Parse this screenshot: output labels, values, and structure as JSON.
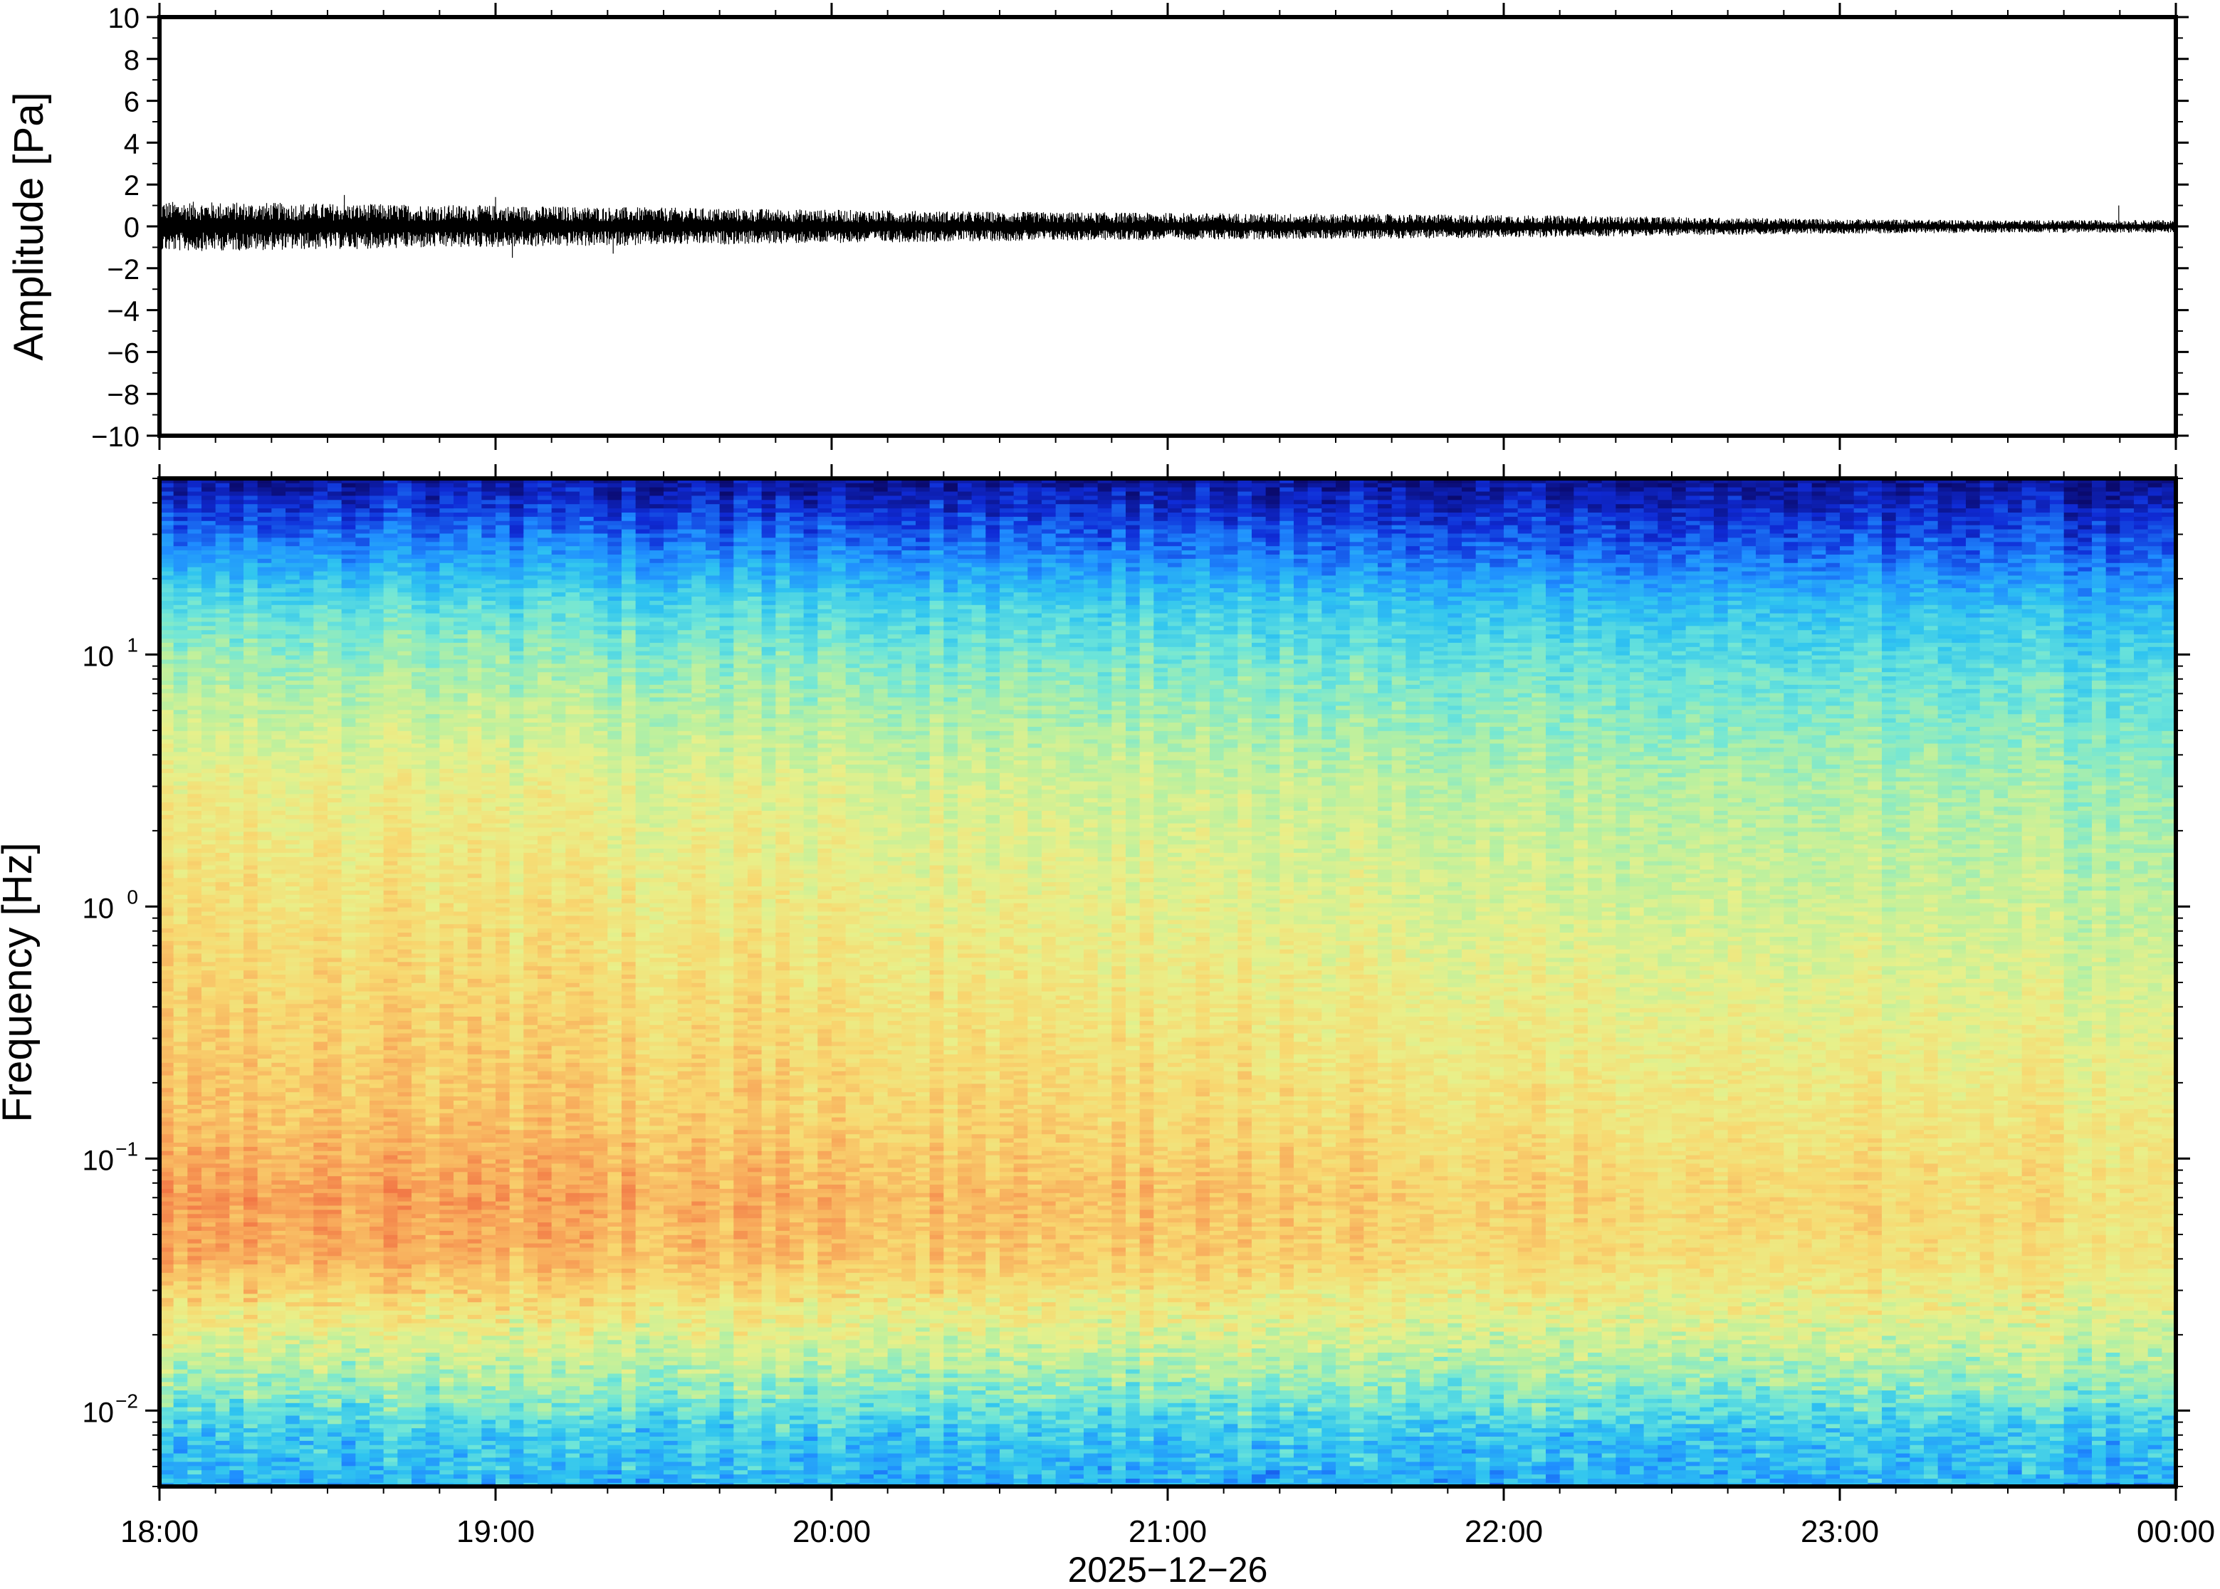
{
  "chart_data": [
    {
      "type": "line",
      "panel": "waveform",
      "ylabel": "Amplitude [Pa]",
      "ylim": [
        -10,
        10
      ],
      "yticks": [
        {
          "value": 10,
          "label": "10"
        },
        {
          "value": 8,
          "label": "8"
        },
        {
          "value": 6,
          "label": "6"
        },
        {
          "value": 4,
          "label": "4"
        },
        {
          "value": 2,
          "label": "2"
        },
        {
          "value": 0,
          "label": "0"
        },
        {
          "value": -2,
          "label": "−2"
        },
        {
          "value": -4,
          "label": "−4"
        },
        {
          "value": -6,
          "label": "−6"
        },
        {
          "value": -8,
          "label": "−8"
        },
        {
          "value": -10,
          "label": "−10"
        }
      ],
      "xlim": [
        "2025-12-26T18:00",
        "2025-12-27T00:00"
      ],
      "envelope_hours": [
        18.0,
        18.5,
        19.0,
        19.5,
        20.0,
        20.5,
        21.0,
        21.5,
        22.0,
        22.5,
        23.0,
        23.5,
        24.0
      ],
      "envelope_amplitude_pa": [
        1.2,
        1.1,
        1.0,
        0.9,
        0.8,
        0.7,
        0.65,
        0.6,
        0.55,
        0.45,
        0.35,
        0.3,
        0.3
      ],
      "peaks": [
        {
          "time_hour": 18.55,
          "value": 1.5
        },
        {
          "time_hour": 19.05,
          "value": -1.5
        },
        {
          "time_hour": 19.0,
          "value": 1.4
        },
        {
          "time_hour": 19.35,
          "value": -1.3
        },
        {
          "time_hour": 23.83,
          "value": 1.0
        }
      ],
      "color": "#000000"
    },
    {
      "type": "heatmap",
      "panel": "spectrogram",
      "ylabel": "Frequency [Hz]",
      "xlabel": "2025−12−26",
      "yscale": "log",
      "ylim": [
        0.005,
        50
      ],
      "yticks": [
        {
          "value": 0.01,
          "base": "10",
          "exp": "−2"
        },
        {
          "value": 0.1,
          "base": "10",
          "exp": "−1"
        },
        {
          "value": 1,
          "base": "10",
          "exp": "0"
        },
        {
          "value": 10,
          "base": "10",
          "exp": "1"
        }
      ],
      "xticks": [
        "18:00",
        "19:00",
        "20:00",
        "21:00",
        "22:00",
        "23:00",
        "00:00"
      ],
      "colormap": [
        "#0a0a6e",
        "#0f2bd6",
        "#1f8cff",
        "#2fc4f0",
        "#6fe6d8",
        "#b8f0a0",
        "#e8f08a",
        "#f8d870",
        "#f8a85a",
        "#f06a40"
      ],
      "colormap_note_level_by_frequency": {
        "freq_hz": [
          0.005,
          0.008,
          0.012,
          0.02,
          0.04,
          0.07,
          0.15,
          0.4,
          1,
          3,
          8,
          15,
          25,
          50
        ],
        "level_18h": [
          0.3,
          0.36,
          0.5,
          0.66,
          0.88,
          0.92,
          0.84,
          0.8,
          0.76,
          0.7,
          0.56,
          0.44,
          0.26,
          0.05
        ],
        "level_24h": [
          0.3,
          0.34,
          0.48,
          0.62,
          0.72,
          0.74,
          0.7,
          0.64,
          0.58,
          0.52,
          0.42,
          0.32,
          0.18,
          0.04
        ]
      }
    }
  ]
}
